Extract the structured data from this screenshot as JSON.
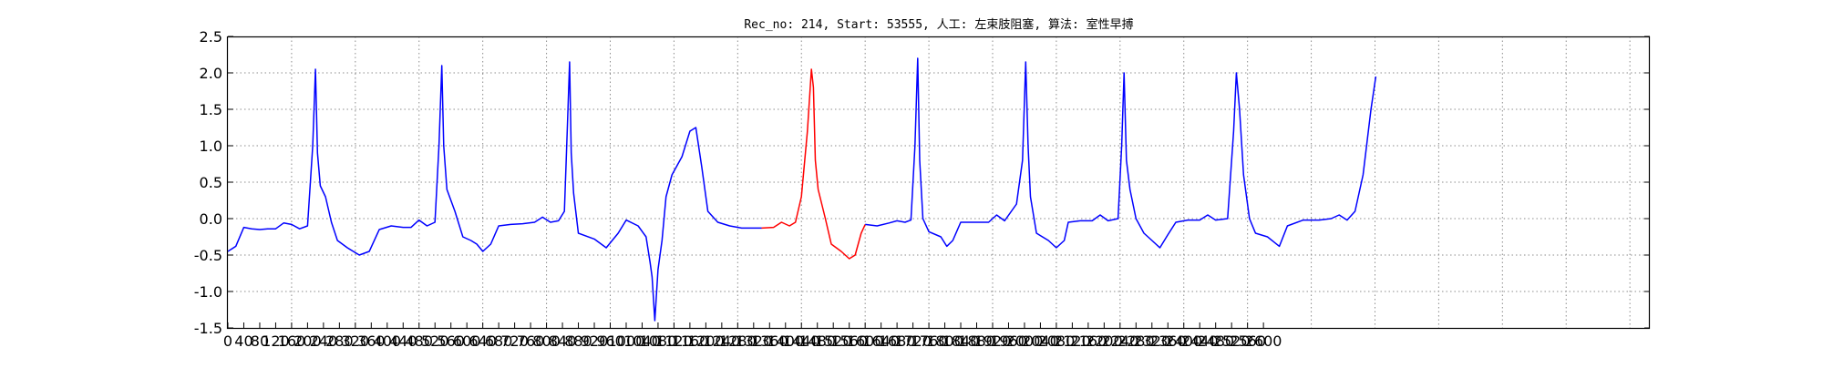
{
  "chart_data": {
    "type": "line",
    "title": "Rec_no: 214, Start: 53555, 人工: 左束肢阻塞, 算法: 室性早搏",
    "xlabel": "",
    "ylabel": "",
    "xlim": [
      0,
      3570
    ],
    "ylim": [
      -1.5,
      2.5
    ],
    "grid": true,
    "legend": "none",
    "y_ticks": [
      -1.5,
      -1.0,
      -0.5,
      0.0,
      0.5,
      1.0,
      1.5,
      2.0,
      2.5
    ],
    "y_tick_labels": [
      "-1.5",
      "-1.0",
      "-0.5",
      "0.0",
      "0.5",
      "1.0",
      "1.5",
      "2.0",
      "2.5"
    ],
    "x_ticks": [
      0,
      40,
      80,
      120,
      160,
      200,
      240,
      280,
      320,
      360,
      400,
      440,
      480,
      520,
      560,
      600,
      640,
      680,
      720,
      760,
      800,
      840,
      880,
      920,
      960,
      1000,
      1040,
      1080,
      1120,
      1160,
      1200,
      1240,
      1280,
      1320,
      1360,
      1400,
      1440,
      1480,
      1520,
      1560,
      1600,
      1640,
      1680,
      1720,
      1760,
      1800,
      1840,
      1880,
      1920,
      1960,
      2000,
      2040,
      2080,
      2120,
      2160,
      2200,
      2240,
      2280,
      2320,
      2360,
      2400,
      2440,
      2480,
      2520,
      2560,
      2600
    ],
    "x_tick_labels": [
      "0",
      "40",
      "80",
      "120",
      "160",
      "200",
      "240",
      "280",
      "320",
      "360",
      "400",
      "440",
      "480",
      "520",
      "560",
      "600",
      "640",
      "680",
      "720",
      "760",
      "800",
      "840",
      "880",
      "920",
      "960",
      "1000",
      "1040",
      "1080",
      "1120",
      "1160",
      "1200",
      "1240",
      "1280",
      "1320",
      "1360",
      "1400",
      "1440",
      "1480",
      "1520",
      "1560",
      "1600",
      "1640",
      "1680",
      "1720",
      "1760",
      "1800",
      "1840",
      "1880",
      "1920",
      "1960",
      "2000",
      "2040",
      "2080",
      "2120",
      "2160",
      "2200",
      "2240",
      "2280",
      "2320",
      "2360",
      "2400",
      "2440",
      "2480",
      "2520",
      "2560",
      "2600"
    ],
    "x_grid_step": 160,
    "colors": {
      "normal": "#0000ff",
      "highlight": "#ff0000",
      "grid": "#8c8c8c",
      "axes": "#000000"
    },
    "series": [
      {
        "color": "#0000ff",
        "points": [
          [
            0,
            -0.45
          ],
          [
            20,
            -0.38
          ],
          [
            40,
            -0.12
          ],
          [
            60,
            -0.14
          ],
          [
            80,
            -0.15
          ],
          [
            100,
            -0.14
          ],
          [
            120,
            -0.14
          ],
          [
            140,
            -0.06
          ],
          [
            160,
            -0.08
          ],
          [
            180,
            -0.14
          ],
          [
            200,
            -0.1
          ],
          [
            213,
            1.0
          ],
          [
            220,
            2.05
          ],
          [
            225,
            0.9
          ],
          [
            232,
            0.45
          ],
          [
            245,
            0.3
          ],
          [
            260,
            -0.05
          ],
          [
            275,
            -0.3
          ],
          [
            300,
            -0.4
          ],
          [
            330,
            -0.5
          ],
          [
            355,
            -0.45
          ],
          [
            380,
            -0.15
          ],
          [
            410,
            -0.1
          ],
          [
            440,
            -0.12
          ],
          [
            460,
            -0.12
          ],
          [
            480,
            -0.02
          ],
          [
            500,
            -0.1
          ],
          [
            520,
            -0.05
          ],
          [
            530,
            1.0
          ],
          [
            537,
            2.1
          ],
          [
            542,
            1.0
          ],
          [
            550,
            0.4
          ],
          [
            570,
            0.1
          ],
          [
            590,
            -0.25
          ],
          [
            610,
            -0.3
          ],
          [
            625,
            -0.35
          ],
          [
            640,
            -0.45
          ],
          [
            660,
            -0.35
          ],
          [
            680,
            -0.1
          ],
          [
            710,
            -0.08
          ],
          [
            740,
            -0.07
          ],
          [
            770,
            -0.05
          ],
          [
            790,
            0.02
          ],
          [
            810,
            -0.05
          ],
          [
            830,
            -0.03
          ],
          [
            845,
            0.1
          ],
          [
            852,
            1.2
          ],
          [
            858,
            2.15
          ],
          [
            862,
            0.9
          ],
          [
            868,
            0.35
          ],
          [
            880,
            -0.2
          ],
          [
            920,
            -0.28
          ],
          [
            950,
            -0.4
          ],
          [
            980,
            -0.2
          ],
          [
            1000,
            -0.02
          ],
          [
            1030,
            -0.1
          ],
          [
            1050,
            -0.25
          ],
          [
            1060,
            -0.6
          ],
          [
            1065,
            -0.8
          ],
          [
            1072,
            -1.4
          ],
          [
            1080,
            -0.7
          ],
          [
            1090,
            -0.3
          ],
          [
            1100,
            0.3
          ],
          [
            1115,
            0.6
          ],
          [
            1140,
            0.85
          ],
          [
            1160,
            1.2
          ],
          [
            1175,
            1.25
          ],
          [
            1190,
            0.7
          ],
          [
            1205,
            0.1
          ],
          [
            1230,
            -0.05
          ],
          [
            1260,
            -0.1
          ],
          [
            1290,
            -0.13
          ],
          [
            1310,
            -0.13
          ],
          [
            1340,
            -0.13
          ]
        ]
      },
      {
        "color": "#ff0000",
        "points": [
          [
            1340,
            -0.13
          ],
          [
            1370,
            -0.12
          ],
          [
            1390,
            -0.05
          ],
          [
            1410,
            -0.1
          ],
          [
            1425,
            -0.05
          ],
          [
            1440,
            0.3
          ],
          [
            1455,
            1.2
          ],
          [
            1465,
            2.05
          ],
          [
            1470,
            1.8
          ],
          [
            1475,
            0.8
          ],
          [
            1482,
            0.4
          ],
          [
            1500,
            0.0
          ],
          [
            1515,
            -0.35
          ],
          [
            1540,
            -0.45
          ],
          [
            1560,
            -0.55
          ],
          [
            1575,
            -0.5
          ],
          [
            1590,
            -0.2
          ],
          [
            1600,
            -0.08
          ]
        ]
      },
      {
        "color": "#0000ff",
        "points": [
          [
            1600,
            -0.08
          ],
          [
            1630,
            -0.1
          ],
          [
            1660,
            -0.06
          ],
          [
            1680,
            -0.03
          ],
          [
            1700,
            -0.05
          ],
          [
            1715,
            -0.02
          ],
          [
            1725,
            1.0
          ],
          [
            1732,
            2.2
          ],
          [
            1737,
            0.8
          ],
          [
            1745,
            0.0
          ],
          [
            1760,
            -0.18
          ],
          [
            1790,
            -0.25
          ],
          [
            1805,
            -0.38
          ],
          [
            1820,
            -0.3
          ],
          [
            1840,
            -0.05
          ],
          [
            1880,
            -0.05
          ],
          [
            1910,
            -0.05
          ],
          [
            1930,
            0.05
          ],
          [
            1950,
            -0.03
          ],
          [
            1980,
            0.2
          ],
          [
            1995,
            0.8
          ],
          [
            2003,
            2.15
          ],
          [
            2009,
            1.0
          ],
          [
            2015,
            0.3
          ],
          [
            2030,
            -0.2
          ],
          [
            2060,
            -0.3
          ],
          [
            2080,
            -0.4
          ],
          [
            2100,
            -0.3
          ],
          [
            2110,
            -0.05
          ],
          [
            2140,
            -0.03
          ],
          [
            2170,
            -0.03
          ],
          [
            2190,
            0.05
          ],
          [
            2210,
            -0.03
          ],
          [
            2235,
            0.0
          ],
          [
            2244,
            1.0
          ],
          [
            2250,
            2.0
          ],
          [
            2256,
            0.8
          ],
          [
            2265,
            0.4
          ],
          [
            2280,
            0.0
          ],
          [
            2300,
            -0.2
          ],
          [
            2320,
            -0.3
          ],
          [
            2340,
            -0.4
          ],
          [
            2360,
            -0.22
          ],
          [
            2380,
            -0.05
          ],
          [
            2410,
            -0.02
          ],
          [
            2440,
            -0.02
          ],
          [
            2460,
            0.05
          ],
          [
            2480,
            -0.02
          ],
          [
            2510,
            0.0
          ],
          [
            2525,
            1.2
          ],
          [
            2532,
            2.0
          ],
          [
            2540,
            1.5
          ],
          [
            2550,
            0.6
          ],
          [
            2565,
            0.0
          ],
          [
            2580,
            -0.2
          ],
          [
            2610,
            -0.25
          ],
          [
            2640,
            -0.38
          ],
          [
            2660,
            -0.1
          ],
          [
            2700,
            -0.02
          ],
          [
            2740,
            -0.02
          ],
          [
            2770,
            0.0
          ],
          [
            2790,
            0.05
          ],
          [
            2810,
            -0.02
          ],
          [
            2830,
            0.1
          ],
          [
            2850,
            0.6
          ],
          [
            2870,
            1.5
          ],
          [
            2882,
            1.95
          ]
        ]
      }
    ]
  }
}
